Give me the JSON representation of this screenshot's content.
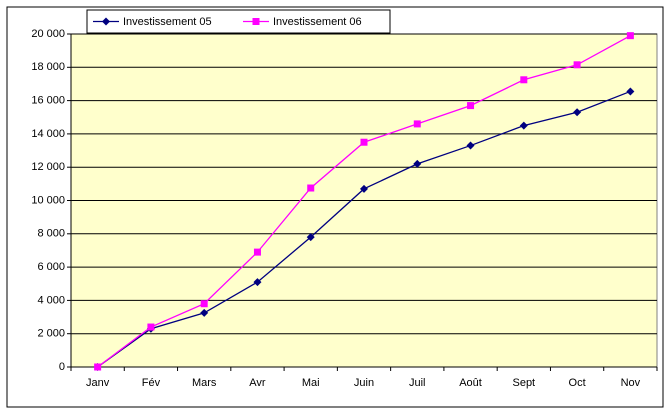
{
  "chart_data": {
    "type": "line",
    "categories": [
      "Janv",
      "Fév",
      "Mars",
      "Avr",
      "Mai",
      "Juin",
      "Juil",
      "Août",
      "Sept",
      "Oct",
      "Nov"
    ],
    "series": [
      {
        "name": "Investissement 05",
        "color": "#000080",
        "marker": "diamond",
        "values": [
          0,
          2300,
          3250,
          5100,
          7800,
          10700,
          12200,
          13300,
          14500,
          15300,
          16550
        ]
      },
      {
        "name": "Investissement 06",
        "color": "#ff00ff",
        "marker": "square",
        "values": [
          0,
          2400,
          3800,
          6900,
          10750,
          13500,
          14600,
          15700,
          17250,
          18150,
          19900
        ]
      }
    ],
    "ylim": [
      0,
      20000
    ],
    "yticks": [
      {
        "value": 0,
        "label": "0"
      },
      {
        "value": 2000,
        "label": "2 000"
      },
      {
        "value": 4000,
        "label": "4 000"
      },
      {
        "value": 6000,
        "label": "6 000"
      },
      {
        "value": 8000,
        "label": "8 000"
      },
      {
        "value": 10000,
        "label": "10 000"
      },
      {
        "value": 12000,
        "label": "12 000"
      },
      {
        "value": 14000,
        "label": "14 000"
      },
      {
        "value": 16000,
        "label": "16 000"
      },
      {
        "value": 18000,
        "label": "18 000"
      },
      {
        "value": 20000,
        "label": "20 000"
      }
    ],
    "grid": true,
    "legend": "top-left",
    "plot_background": "#ffffcc"
  }
}
